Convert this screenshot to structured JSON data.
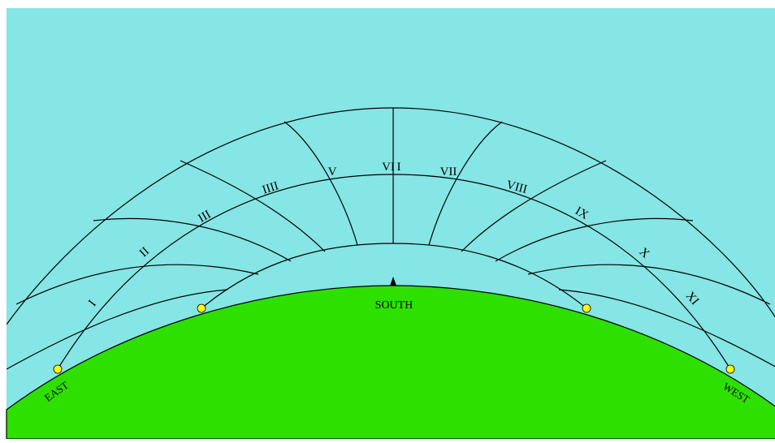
{
  "colors": {
    "sky": "#86E5E5",
    "ground": "#2EE000",
    "line": "#000000",
    "sun_marker": "#FFFF00",
    "background": "#FFFFFF"
  },
  "labels": {
    "south": "SOUTH",
    "east": "EAST",
    "west": "WEST"
  },
  "hours": [
    "I",
    "II",
    "III",
    "IIII",
    "V",
    "VI",
    "VII",
    "VIII",
    "IX",
    "X",
    "XI"
  ]
}
